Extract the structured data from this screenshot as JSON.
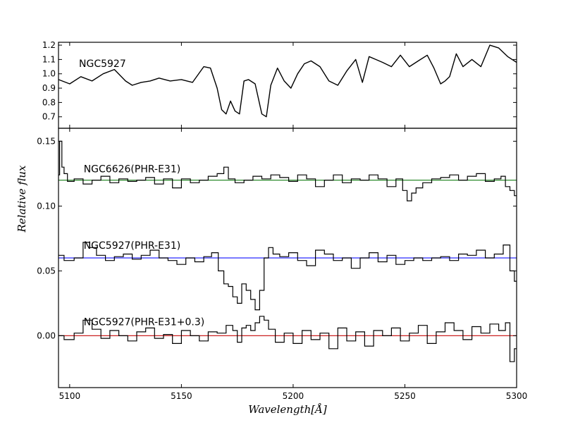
{
  "chart_data": [
    {
      "type": "line",
      "panel": "top",
      "annotation": "NGC5927",
      "xlim": [
        5095,
        5300
      ],
      "ylim": [
        0.62,
        1.22
      ],
      "yticks": [
        0.7,
        0.8,
        0.9,
        1.0,
        1.1,
        1.2
      ],
      "ytick_labels": [
        "0.7",
        "0.8",
        "0.9",
        "1.0",
        "1.1",
        "1.2"
      ],
      "series": [
        {
          "color": "#000000",
          "x": [
            5095,
            5100,
            5105,
            5110,
            5115,
            5120,
            5125,
            5128,
            5132,
            5136,
            5140,
            5145,
            5150,
            5155,
            5160,
            5163,
            5166,
            5168,
            5170,
            5172,
            5174,
            5176,
            5178,
            5180,
            5183,
            5186,
            5188,
            5190,
            5193,
            5196,
            5199,
            5202,
            5205,
            5208,
            5212,
            5216,
            5220,
            5224,
            5228,
            5231,
            5234,
            5237,
            5240,
            5244,
            5248,
            5252,
            5256,
            5260,
            5263,
            5266,
            5268,
            5270,
            5273,
            5276,
            5280,
            5284,
            5288,
            5292,
            5296,
            5300
          ],
          "y": [
            0.96,
            0.93,
            0.98,
            0.95,
            1.0,
            1.03,
            0.95,
            0.92,
            0.94,
            0.95,
            0.97,
            0.95,
            0.96,
            0.94,
            1.05,
            1.04,
            0.9,
            0.75,
            0.72,
            0.81,
            0.74,
            0.72,
            0.95,
            0.96,
            0.93,
            0.72,
            0.7,
            0.92,
            1.04,
            0.95,
            0.9,
            1.0,
            1.07,
            1.09,
            1.05,
            0.95,
            0.92,
            1.02,
            1.1,
            0.94,
            1.12,
            1.1,
            1.08,
            1.05,
            1.13,
            1.05,
            1.09,
            1.13,
            1.04,
            0.93,
            0.95,
            0.98,
            1.14,
            1.05,
            1.1,
            1.05,
            1.2,
            1.18,
            1.12,
            1.08
          ]
        }
      ]
    },
    {
      "type": "line",
      "panel": "bottom",
      "xlabel": "Wavelength[Å]",
      "ylabel": "Relative flux",
      "xlim": [
        5095,
        5300
      ],
      "ylim": [
        -0.04,
        0.16
      ],
      "xticks": [
        5100,
        5150,
        5200,
        5250,
        5300
      ],
      "xtick_labels": [
        "5100",
        "5150",
        "5200",
        "5250",
        "5300"
      ],
      "yticks": [
        0.0,
        0.05,
        0.1,
        0.15
      ],
      "ytick_labels": [
        "0.00",
        "0.05",
        "0.10",
        "0.15"
      ],
      "annotations": [
        {
          "text": "NGC6626(PHR-E31)",
          "x": 5105,
          "y": 0.126
        },
        {
          "text": "NGC5927(PHR-E31)",
          "x": 5105,
          "y": 0.067
        },
        {
          "text": "NGC5927(PHR-E31+0.3)",
          "x": 5105,
          "y": 0.008
        }
      ],
      "reference_lines": [
        {
          "y": 0.12,
          "color": "#2e8b2e"
        },
        {
          "y": 0.06,
          "color": "#2a2aff"
        },
        {
          "y": 0.0,
          "color": "#cc2222"
        }
      ],
      "series": [
        {
          "color": "#000000",
          "x": [
            5095,
            5096,
            5097,
            5098,
            5100,
            5104,
            5108,
            5112,
            5116,
            5120,
            5124,
            5128,
            5132,
            5136,
            5140,
            5144,
            5148,
            5152,
            5156,
            5160,
            5164,
            5168,
            5170,
            5172,
            5176,
            5180,
            5184,
            5188,
            5192,
            5196,
            5200,
            5204,
            5208,
            5212,
            5216,
            5220,
            5224,
            5228,
            5232,
            5236,
            5240,
            5244,
            5248,
            5250,
            5252,
            5254,
            5256,
            5260,
            5264,
            5268,
            5272,
            5276,
            5280,
            5284,
            5288,
            5292,
            5294,
            5296,
            5298,
            5300
          ],
          "y": [
            0.124,
            0.15,
            0.13,
            0.125,
            0.119,
            0.121,
            0.117,
            0.12,
            0.123,
            0.118,
            0.121,
            0.119,
            0.12,
            0.122,
            0.117,
            0.121,
            0.114,
            0.121,
            0.118,
            0.12,
            0.123,
            0.125,
            0.13,
            0.121,
            0.118,
            0.12,
            0.123,
            0.121,
            0.124,
            0.122,
            0.119,
            0.124,
            0.121,
            0.115,
            0.12,
            0.124,
            0.118,
            0.121,
            0.12,
            0.124,
            0.121,
            0.115,
            0.121,
            0.112,
            0.104,
            0.11,
            0.114,
            0.118,
            0.121,
            0.122,
            0.124,
            0.12,
            0.123,
            0.125,
            0.119,
            0.121,
            0.123,
            0.115,
            0.112,
            0.108
          ]
        },
        {
          "color": "#000000",
          "x": [
            5095,
            5100,
            5104,
            5108,
            5110,
            5114,
            5118,
            5122,
            5126,
            5130,
            5134,
            5138,
            5142,
            5146,
            5150,
            5154,
            5158,
            5162,
            5165,
            5168,
            5170,
            5172,
            5174,
            5176,
            5178,
            5180,
            5182,
            5184,
            5186,
            5188,
            5190,
            5192,
            5196,
            5200,
            5204,
            5208,
            5212,
            5216,
            5220,
            5224,
            5228,
            5232,
            5236,
            5240,
            5244,
            5248,
            5252,
            5256,
            5260,
            5264,
            5268,
            5272,
            5276,
            5280,
            5284,
            5288,
            5292,
            5296,
            5298,
            5300
          ],
          "y": [
            0.062,
            0.058,
            0.06,
            0.072,
            0.068,
            0.062,
            0.058,
            0.061,
            0.063,
            0.059,
            0.062,
            0.066,
            0.06,
            0.058,
            0.055,
            0.06,
            0.057,
            0.061,
            0.064,
            0.05,
            0.04,
            0.038,
            0.03,
            0.025,
            0.04,
            0.035,
            0.028,
            0.02,
            0.035,
            0.06,
            0.068,
            0.063,
            0.061,
            0.064,
            0.058,
            0.054,
            0.066,
            0.063,
            0.058,
            0.06,
            0.052,
            0.06,
            0.064,
            0.057,
            0.062,
            0.055,
            0.058,
            0.06,
            0.058,
            0.06,
            0.061,
            0.058,
            0.063,
            0.062,
            0.066,
            0.06,
            0.063,
            0.07,
            0.05,
            0.042
          ]
        },
        {
          "color": "#000000",
          "x": [
            5095,
            5100,
            5104,
            5108,
            5112,
            5116,
            5120,
            5124,
            5128,
            5132,
            5136,
            5140,
            5144,
            5148,
            5152,
            5156,
            5160,
            5164,
            5168,
            5172,
            5174,
            5176,
            5178,
            5180,
            5182,
            5184,
            5186,
            5188,
            5190,
            5194,
            5198,
            5202,
            5206,
            5210,
            5214,
            5218,
            5222,
            5226,
            5230,
            5234,
            5238,
            5242,
            5246,
            5250,
            5254,
            5258,
            5262,
            5266,
            5270,
            5274,
            5278,
            5282,
            5286,
            5290,
            5294,
            5296,
            5298,
            5300
          ],
          "y": [
            0.0,
            -0.003,
            0.002,
            0.012,
            0.005,
            -0.002,
            0.004,
            0.0,
            -0.004,
            0.003,
            0.006,
            -0.002,
            0.001,
            -0.006,
            0.004,
            0.0,
            -0.004,
            0.003,
            0.002,
            0.008,
            0.004,
            -0.005,
            0.006,
            0.008,
            0.004,
            0.01,
            0.015,
            0.012,
            0.005,
            -0.005,
            0.002,
            -0.006,
            0.004,
            -0.003,
            0.002,
            -0.01,
            0.006,
            -0.004,
            0.003,
            -0.008,
            0.004,
            0.0,
            0.006,
            -0.004,
            0.002,
            0.008,
            -0.006,
            0.003,
            0.01,
            0.004,
            -0.003,
            0.007,
            0.002,
            0.009,
            0.004,
            0.01,
            -0.02,
            -0.01
          ]
        }
      ]
    }
  ]
}
